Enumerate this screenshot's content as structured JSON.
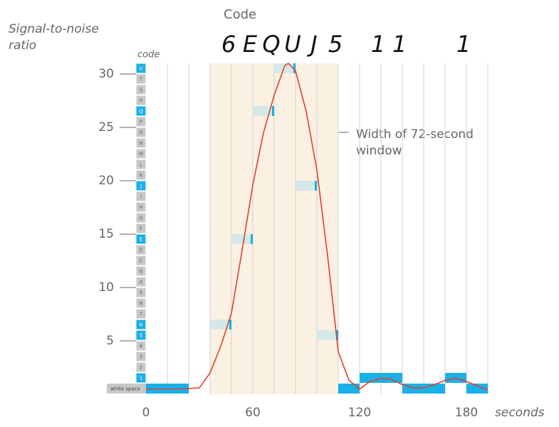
{
  "chart_data": {
    "type": "line",
    "title": "Code",
    "ylabel": "Signal-to-noise ratio",
    "xlabel": "seconds",
    "code_label": "code",
    "annotation": "Width of 72-second window",
    "codes": [
      "white space",
      "1",
      "2",
      "3",
      "4",
      "5",
      "6",
      "7",
      "8",
      "9",
      "A",
      "B",
      "C",
      "D",
      "E",
      "F",
      "G",
      "H",
      "I",
      "J",
      "K",
      "L",
      "M",
      "N",
      "O",
      "P",
      "Q",
      "R",
      "S",
      "T",
      "U"
    ],
    "highlight": [
      36,
      108
    ],
    "windows": [
      {
        "start": 0,
        "end": 12,
        "code": "white space"
      },
      {
        "start": 12,
        "end": 24,
        "code": "white space"
      },
      {
        "start": 36,
        "end": 48,
        "code": "6"
      },
      {
        "start": 48,
        "end": 60,
        "code": "E"
      },
      {
        "start": 60,
        "end": 72,
        "code": "Q"
      },
      {
        "start": 72,
        "end": 84,
        "code": "U"
      },
      {
        "start": 84,
        "end": 96,
        "code": "J"
      },
      {
        "start": 96,
        "end": 108,
        "code": "5"
      },
      {
        "start": 108,
        "end": 120,
        "code": "white space"
      },
      {
        "start": 120,
        "end": 132,
        "code": "1"
      },
      {
        "start": 132,
        "end": 144,
        "code": "1"
      },
      {
        "start": 144,
        "end": 156,
        "code": "white space"
      },
      {
        "start": 156,
        "end": 168,
        "code": "white space"
      },
      {
        "start": 168,
        "end": 180,
        "code": "1"
      },
      {
        "start": 180,
        "end": 192,
        "code": "white space"
      }
    ],
    "x": [
      0,
      10,
      20,
      30,
      36,
      42,
      48,
      54,
      60,
      66,
      72,
      78,
      80,
      84,
      90,
      96,
      102,
      108,
      114,
      120,
      126,
      132,
      138,
      144,
      150,
      156,
      162,
      168,
      174,
      180,
      186,
      192
    ],
    "series": [
      {
        "color": "#e0402c",
        "values": [
          0.5,
          0.5,
          0.5,
          0.6,
          2,
          4.5,
          7.6,
          13.5,
          19.6,
          24.5,
          28,
          30.8,
          31,
          30.3,
          26.5,
          21,
          13,
          4,
          1.3,
          0.5,
          1.2,
          1.5,
          1.4,
          0.9,
          0.6,
          0.6,
          0.9,
          1.3,
          1.5,
          1.2,
          0.8,
          0.4
        ]
      }
    ],
    "xlim": [
      0,
      192
    ],
    "ylim": [
      0,
      31
    ],
    "xticks": [
      0,
      60,
      120,
      180
    ],
    "yticks": [
      5,
      10,
      15,
      20,
      25,
      30
    ]
  }
}
